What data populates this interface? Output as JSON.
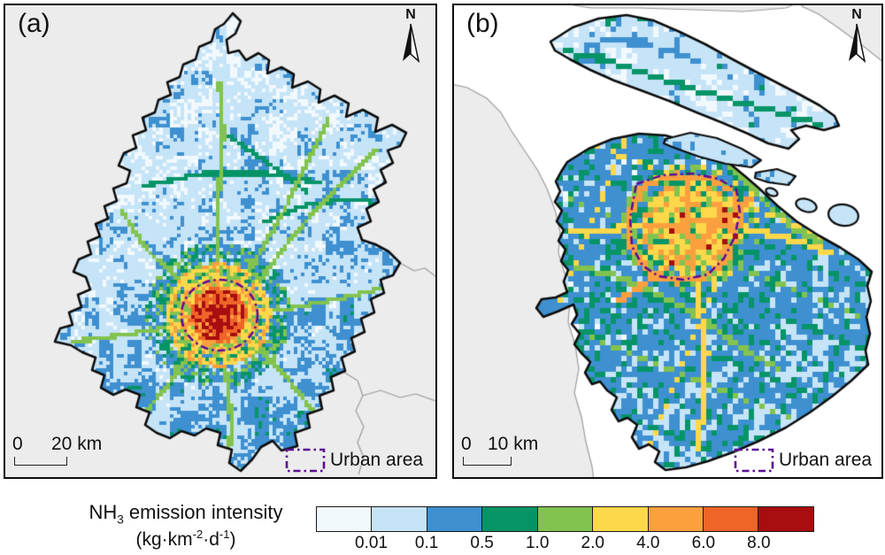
{
  "panels": [
    {
      "label": "(a)",
      "north_label": "N",
      "scale_zero": "0",
      "scale_distance": "20 km",
      "urban_label": "Urban area"
    },
    {
      "label": "(b)",
      "north_label": "N",
      "scale_zero": "0",
      "scale_distance": "10 km",
      "urban_label": "Urban area"
    }
  ],
  "colorbar": {
    "title": {
      "prefix": "NH",
      "sub": "3",
      "rest": " emission intensity"
    },
    "units": {
      "u1": "(kg·km",
      "sup1": "-2",
      "u2": "·d",
      "sup2": "-1",
      "u3": ")"
    },
    "tick_labels": [
      "0.01",
      "0.1",
      "0.5",
      "1.0",
      "2.0",
      "4.0",
      "6.0",
      "8.0"
    ],
    "class_colors": [
      "#f2f9fd",
      "#c6e4f7",
      "#3e90d0",
      "#069467",
      "#82c34f",
      "#fdd84a",
      "#fba03f",
      "#ef6528",
      "#a80d10"
    ]
  },
  "map_colors": {
    "panel_bg": "#ececec",
    "water": "#ffffff",
    "outside_land": "#ececec",
    "boundary": "#0c0c0c",
    "admin_line": "#9c9c9c",
    "urban_outline": "#5c0d93",
    "island_fill": "#c6e4f7"
  }
}
